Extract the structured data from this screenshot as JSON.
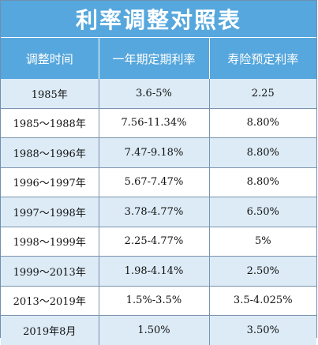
{
  "title": "利率调整对照表",
  "headers": [
    "调整时间",
    "一年期定期利率",
    "寿险预定利率"
  ],
  "rows": [
    {
      "period": "1985年",
      "deposit_rate": "3.6-5%",
      "insurance_rate": "2.25"
    },
    {
      "period": "1985～1988年",
      "deposit_rate": "7.56-11.34%",
      "insurance_rate": "8.80%"
    },
    {
      "period": "1988～1996年",
      "deposit_rate": "7.47-9.18%",
      "insurance_rate": "8.80%"
    },
    {
      "period": "1996～1997年",
      "deposit_rate": "5.67-7.47%",
      "insurance_rate": "8.80%"
    },
    {
      "period": "1997～1998年",
      "deposit_rate": "3.78-4.77%",
      "insurance_rate": "6.50%"
    },
    {
      "period": "1998～1999年",
      "deposit_rate": "2.25-4.77%",
      "insurance_rate": "5%"
    },
    {
      "period": "1999～2013年",
      "deposit_rate": "1.98-4.14%",
      "insurance_rate": "2.50%"
    },
    {
      "period": "2013～2019年",
      "deposit_rate": "1.5%-3.5%",
      "insurance_rate": "3.5-4.025%"
    },
    {
      "period": "2019年8月",
      "deposit_rate": "1.50%",
      "insurance_rate": "3.50%"
    }
  ],
  "colors": {
    "header_bg": "#56a7dd",
    "stripe_bg": "#dcebf6",
    "grid_line": "#7a93ad"
  }
}
